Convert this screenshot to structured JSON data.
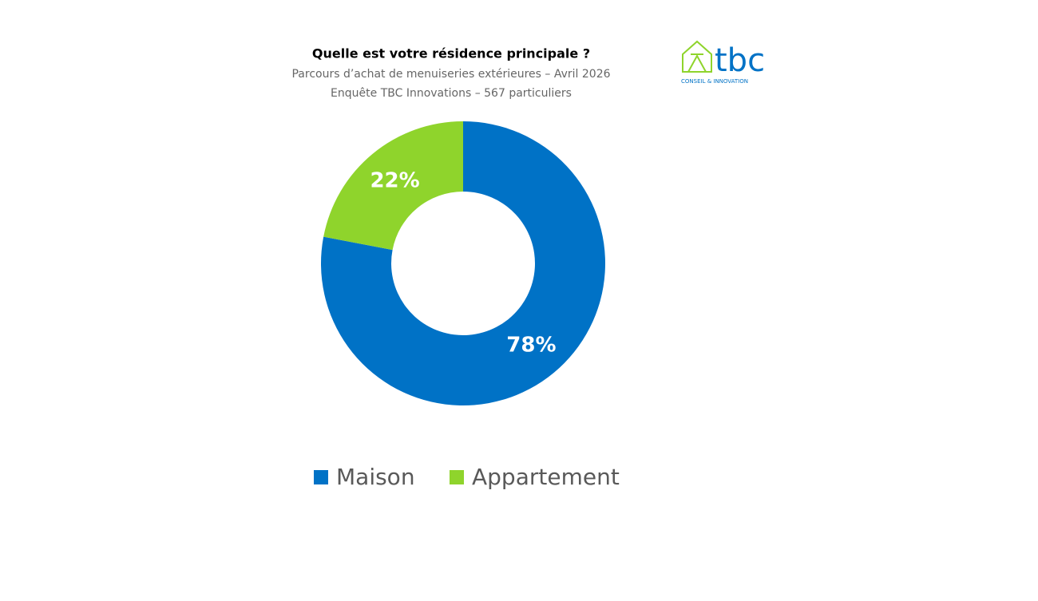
{
  "chart_data": {
    "type": "donut",
    "title": "Quelle est votre résidence principale ?",
    "subtitle": [
      "Parcours d’achat de menuiseries extérieures – Avril 2026",
      "Enquête TBC Innovations – 567 particuliers"
    ],
    "logo_text": "tbc",
    "logo_tagline": "CONSEIL & INNOVATION",
    "categories": [
      "Maison",
      "Appartement"
    ],
    "values": [
      78,
      22
    ],
    "value_labels": [
      "78%",
      "22%"
    ],
    "colors": [
      "#0072c6",
      "#8fd42c"
    ],
    "legend": "bottom"
  }
}
